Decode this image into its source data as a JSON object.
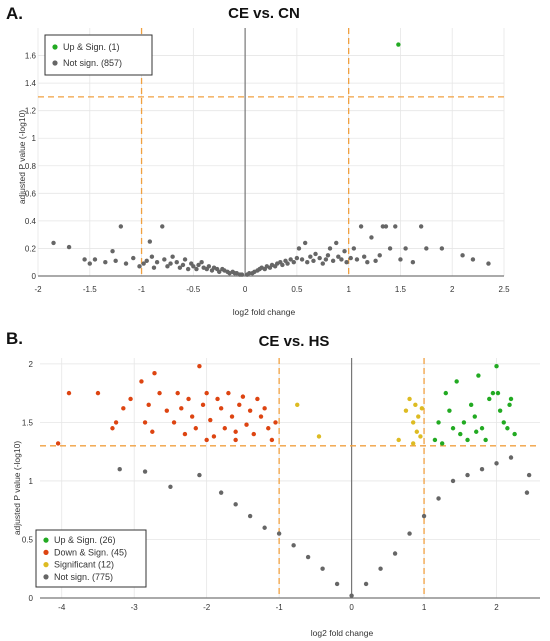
{
  "panels": [
    {
      "label": "A.",
      "title": "CE vs. CN",
      "xlabel": "log2 fold change",
      "ylabel": "adjusted P value (-log10)",
      "xlim": [
        -2,
        2.5
      ],
      "ylim": [
        0,
        1.8
      ],
      "xticks": [
        "-2",
        "-1.5",
        "-1",
        "-0.5",
        "0",
        "0.5",
        "1",
        "1.5",
        "2",
        "2.5"
      ],
      "yticks": [
        "0",
        "0.2",
        "0.4",
        "0.6",
        "0.8",
        "1",
        "1.2",
        "1.4",
        "1.6"
      ],
      "legend": [
        {
          "label": "Up & Sign. (1)",
          "color": "#22aa22"
        },
        {
          "label": "Not sign. (857)",
          "color": "#666666"
        }
      ]
    },
    {
      "label": "B.",
      "title": "CE vs. HS",
      "xlabel": "log2 fold change",
      "ylabel": "adjusted P value (-log10)",
      "xlim": [
        -4.3,
        2.6
      ],
      "ylim": [
        0,
        2.05
      ],
      "xticks": [
        "-4",
        "-3",
        "-2",
        "-1",
        "0",
        "1",
        "2"
      ],
      "yticks": [
        "0",
        "0.5",
        "1",
        "1.5",
        "2"
      ],
      "legend": [
        {
          "label": "Up & Sign. (26)",
          "color": "#22aa22"
        },
        {
          "label": "Down & Sign. (45)",
          "color": "#dd4411"
        },
        {
          "label": "Significant (12)",
          "color": "#ddbb22"
        },
        {
          "label": "Not sign. (775)",
          "color": "#666666"
        }
      ]
    }
  ],
  "colors": {
    "up": "#22aa22",
    "down": "#dd4411",
    "significant": "#ddbb22",
    "ns": "#666666",
    "threshold": "#f0a040"
  },
  "chart_data": [
    {
      "type": "scatter",
      "title": "CE vs. CN",
      "xlabel": "log2 fold change",
      "ylabel": "adjusted P value (-log10)",
      "xlim": [
        -2,
        2.5
      ],
      "ylim": [
        0,
        1.8
      ],
      "thresholds": {
        "x": [
          -1,
          1
        ],
        "y": 1.3
      },
      "grid": true,
      "legend_position": "top-left",
      "series": [
        {
          "name": "Up & Sign. (1)",
          "points": [
            [
              1.48,
              1.68
            ]
          ]
        },
        {
          "name": "Not sign. (857)",
          "points": [
            [
              -1.85,
              0.24
            ],
            [
              -1.7,
              0.21
            ],
            [
              -1.55,
              0.12
            ],
            [
              -1.5,
              0.09
            ],
            [
              -1.45,
              0.12
            ],
            [
              -1.35,
              0.1
            ],
            [
              -1.28,
              0.18
            ],
            [
              -1.25,
              0.11
            ],
            [
              -1.2,
              0.36
            ],
            [
              -1.15,
              0.09
            ],
            [
              -1.08,
              0.13
            ],
            [
              -1.02,
              0.07
            ],
            [
              -0.98,
              0.09
            ],
            [
              -0.95,
              0.11
            ],
            [
              -0.92,
              0.25
            ],
            [
              -0.9,
              0.14
            ],
            [
              -0.88,
              0.06
            ],
            [
              -0.85,
              0.1
            ],
            [
              -0.8,
              0.36
            ],
            [
              -0.78,
              0.12
            ],
            [
              -0.75,
              0.07
            ],
            [
              -0.72,
              0.09
            ],
            [
              -0.7,
              0.14
            ],
            [
              -0.66,
              0.1
            ],
            [
              -0.63,
              0.06
            ],
            [
              -0.6,
              0.08
            ],
            [
              -0.58,
              0.12
            ],
            [
              -0.55,
              0.05
            ],
            [
              -0.52,
              0.09
            ],
            [
              -0.5,
              0.07
            ],
            [
              -0.47,
              0.05
            ],
            [
              -0.45,
              0.08
            ],
            [
              -0.42,
              0.1
            ],
            [
              -0.4,
              0.06
            ],
            [
              -0.37,
              0.05
            ],
            [
              -0.35,
              0.07
            ],
            [
              -0.32,
              0.04
            ],
            [
              -0.3,
              0.06
            ],
            [
              -0.27,
              0.05
            ],
            [
              -0.25,
              0.03
            ],
            [
              -0.22,
              0.05
            ],
            [
              -0.2,
              0.04
            ],
            [
              -0.17,
              0.03
            ],
            [
              -0.15,
              0.02
            ],
            [
              -0.12,
              0.03
            ],
            [
              -0.1,
              0.02
            ],
            [
              -0.08,
              0.02
            ],
            [
              -0.05,
              0.01
            ],
            [
              -0.03,
              0.01
            ],
            [
              0.02,
              0.01
            ],
            [
              0.04,
              0.02
            ],
            [
              0.07,
              0.02
            ],
            [
              0.09,
              0.03
            ],
            [
              0.12,
              0.04
            ],
            [
              0.14,
              0.05
            ],
            [
              0.16,
              0.06
            ],
            [
              0.19,
              0.05
            ],
            [
              0.21,
              0.07
            ],
            [
              0.24,
              0.06
            ],
            [
              0.26,
              0.08
            ],
            [
              0.29,
              0.07
            ],
            [
              0.31,
              0.09
            ],
            [
              0.34,
              0.1
            ],
            [
              0.36,
              0.08
            ],
            [
              0.39,
              0.11
            ],
            [
              0.41,
              0.09
            ],
            [
              0.44,
              0.12
            ],
            [
              0.47,
              0.1
            ],
            [
              0.5,
              0.13
            ],
            [
              0.52,
              0.2
            ],
            [
              0.55,
              0.12
            ],
            [
              0.58,
              0.24
            ],
            [
              0.6,
              0.1
            ],
            [
              0.63,
              0.14
            ],
            [
              0.66,
              0.11
            ],
            [
              0.68,
              0.16
            ],
            [
              0.72,
              0.13
            ],
            [
              0.75,
              0.09
            ],
            [
              0.78,
              0.12
            ],
            [
              0.8,
              0.15
            ],
            [
              0.82,
              0.2
            ],
            [
              0.85,
              0.11
            ],
            [
              0.88,
              0.24
            ],
            [
              0.9,
              0.14
            ],
            [
              0.93,
              0.12
            ],
            [
              0.96,
              0.18
            ],
            [
              0.98,
              0.1
            ],
            [
              1.02,
              0.13
            ],
            [
              1.05,
              0.2
            ],
            [
              1.08,
              0.12
            ],
            [
              1.12,
              0.36
            ],
            [
              1.15,
              0.14
            ],
            [
              1.18,
              0.1
            ],
            [
              1.22,
              0.28
            ],
            [
              1.26,
              0.11
            ],
            [
              1.3,
              0.15
            ],
            [
              1.33,
              0.36
            ],
            [
              1.36,
              0.36
            ],
            [
              1.4,
              0.2
            ],
            [
              1.45,
              0.36
            ],
            [
              1.5,
              0.12
            ],
            [
              1.55,
              0.2
            ],
            [
              1.62,
              0.1
            ],
            [
              1.7,
              0.36
            ],
            [
              1.75,
              0.2
            ],
            [
              1.9,
              0.2
            ],
            [
              2.1,
              0.15
            ],
            [
              2.2,
              0.12
            ],
            [
              2.35,
              0.09
            ]
          ]
        }
      ]
    },
    {
      "type": "scatter",
      "title": "CE vs. HS",
      "xlabel": "log2 fold change",
      "ylabel": "adjusted P value (-log10)",
      "xlim": [
        -4.3,
        2.6
      ],
      "ylim": [
        0,
        2.05
      ],
      "thresholds": {
        "x": [
          -1,
          1
        ],
        "y": 1.3
      },
      "grid": true,
      "legend_position": "bottom-left",
      "series": [
        {
          "name": "Up & Sign. (26)",
          "points": [
            [
              1.3,
              1.75
            ],
            [
              1.35,
              1.6
            ],
            [
              1.4,
              1.45
            ],
            [
              1.45,
              1.85
            ],
            [
              1.5,
              1.4
            ],
            [
              1.55,
              1.5
            ],
            [
              1.6,
              1.35
            ],
            [
              1.65,
              1.65
            ],
            [
              1.7,
              1.55
            ],
            [
              1.75,
              1.9
            ],
            [
              1.8,
              1.45
            ],
            [
              1.85,
              1.35
            ],
            [
              1.9,
              1.7
            ],
            [
              1.95,
              1.75
            ],
            [
              2.0,
              1.98
            ],
            [
              2.05,
              1.6
            ],
            [
              2.1,
              1.5
            ],
            [
              2.15,
              1.45
            ],
            [
              2.2,
              1.7
            ],
            [
              2.25,
              1.4
            ],
            [
              1.15,
              1.35
            ],
            [
              1.2,
              1.5
            ],
            [
              1.25,
              1.32
            ],
            [
              1.72,
              1.42
            ],
            [
              2.02,
              1.75
            ],
            [
              2.18,
              1.65
            ]
          ]
        },
        {
          "name": "Down & Sign. (45)",
          "points": [
            [
              -4.05,
              1.32
            ],
            [
              -3.9,
              1.75
            ],
            [
              -3.5,
              1.75
            ],
            [
              -3.25,
              1.5
            ],
            [
              -3.15,
              1.62
            ],
            [
              -3.05,
              1.7
            ],
            [
              -2.9,
              1.85
            ],
            [
              -2.85,
              1.5
            ],
            [
              -2.8,
              1.65
            ],
            [
              -2.75,
              1.42
            ],
            [
              -2.72,
              1.92
            ],
            [
              -2.65,
              1.75
            ],
            [
              -2.55,
              1.6
            ],
            [
              -2.45,
              1.5
            ],
            [
              -2.4,
              1.75
            ],
            [
              -2.35,
              1.62
            ],
            [
              -2.3,
              1.4
            ],
            [
              -2.25,
              1.7
            ],
            [
              -2.2,
              1.55
            ],
            [
              -2.15,
              1.45
            ],
            [
              -2.1,
              1.98
            ],
            [
              -2.05,
              1.65
            ],
            [
              -2.0,
              1.75
            ],
            [
              -1.95,
              1.52
            ],
            [
              -1.9,
              1.38
            ],
            [
              -1.85,
              1.7
            ],
            [
              -1.8,
              1.62
            ],
            [
              -1.75,
              1.45
            ],
            [
              -1.7,
              1.75
            ],
            [
              -1.65,
              1.55
            ],
            [
              -1.6,
              1.35
            ],
            [
              -1.55,
              1.65
            ],
            [
              -1.5,
              1.72
            ],
            [
              -1.45,
              1.48
            ],
            [
              -1.4,
              1.6
            ],
            [
              -1.35,
              1.4
            ],
            [
              -1.3,
              1.7
            ],
            [
              -1.25,
              1.55
            ],
            [
              -1.2,
              1.62
            ],
            [
              -1.15,
              1.45
            ],
            [
              -1.1,
              1.35
            ],
            [
              -1.05,
              1.5
            ],
            [
              -3.3,
              1.45
            ],
            [
              -2.0,
              1.35
            ],
            [
              -1.6,
              1.42
            ]
          ]
        },
        {
          "name": "Significant (12)",
          "points": [
            [
              -0.75,
              1.65
            ],
            [
              -0.45,
              1.38
            ],
            [
              0.65,
              1.35
            ],
            [
              0.75,
              1.6
            ],
            [
              0.8,
              1.7
            ],
            [
              0.85,
              1.5
            ],
            [
              0.88,
              1.65
            ],
            [
              0.9,
              1.42
            ],
            [
              0.92,
              1.55
            ],
            [
              0.95,
              1.38
            ],
            [
              0.97,
              1.62
            ],
            [
              0.85,
              1.32
            ]
          ]
        },
        {
          "name": "Not sign. (775)",
          "points": [
            [
              -3.2,
              1.1
            ],
            [
              -2.85,
              1.08
            ],
            [
              -2.5,
              0.95
            ],
            [
              -2.1,
              1.05
            ],
            [
              -1.8,
              0.9
            ],
            [
              -1.6,
              0.8
            ],
            [
              -1.4,
              0.7
            ],
            [
              -1.2,
              0.6
            ],
            [
              -1.0,
              0.55
            ],
            [
              -0.8,
              0.45
            ],
            [
              -0.6,
              0.35
            ],
            [
              -0.4,
              0.25
            ],
            [
              -0.2,
              0.12
            ],
            [
              0.0,
              0.02
            ],
            [
              0.2,
              0.12
            ],
            [
              0.4,
              0.25
            ],
            [
              0.6,
              0.38
            ],
            [
              0.8,
              0.55
            ],
            [
              1.0,
              0.7
            ],
            [
              1.2,
              0.85
            ],
            [
              1.4,
              1.0
            ],
            [
              1.6,
              1.05
            ],
            [
              1.8,
              1.1
            ],
            [
              2.0,
              1.15
            ],
            [
              2.2,
              1.2
            ],
            [
              2.45,
              1.05
            ],
            [
              2.42,
              0.9
            ]
          ]
        }
      ]
    }
  ]
}
